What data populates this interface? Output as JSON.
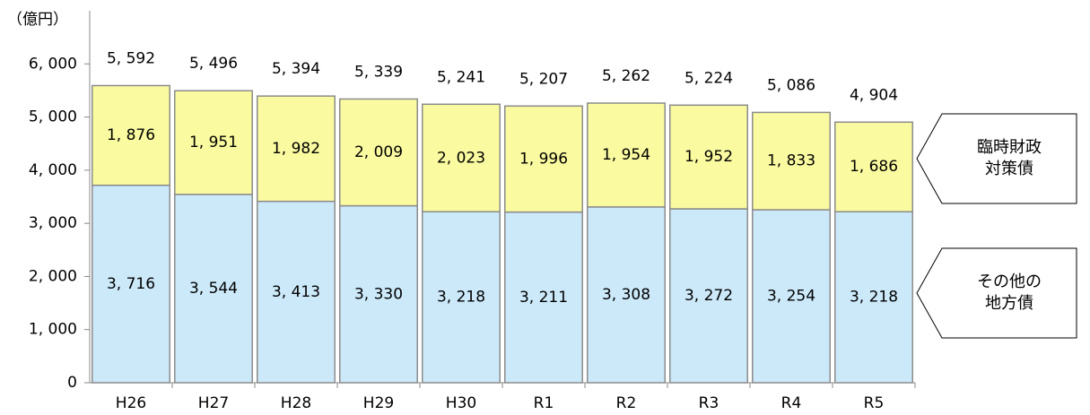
{
  "chart_data": {
    "type": "stacked_bar",
    "y_axis_label": "（億円）",
    "categories": [
      "H26",
      "H27",
      "H28",
      "H29",
      "H30",
      "R1",
      "R2",
      "R3",
      "R4",
      "R5"
    ],
    "series": [
      {
        "name": "その他の地方債",
        "color": "#cce9fa",
        "values": [
          3716,
          3544,
          3413,
          3330,
          3218,
          3211,
          3308,
          3272,
          3254,
          3218
        ],
        "value_labels": [
          "3, 716",
          "3, 544",
          "3, 413",
          "3, 330",
          "3, 218",
          "3, 211",
          "3, 308",
          "3, 272",
          "3, 254",
          "3, 218"
        ]
      },
      {
        "name": "臨時財政対策債",
        "color": "#fafaa0",
        "values": [
          1876,
          1951,
          1982,
          2009,
          2023,
          1996,
          1954,
          1952,
          1833,
          1686
        ],
        "value_labels": [
          "1, 876",
          "1, 951",
          "1, 982",
          "2, 009",
          "2, 023",
          "1, 996",
          "1, 954",
          "1, 952",
          "1, 833",
          "1, 686"
        ]
      }
    ],
    "totals": [
      5592,
      5496,
      5394,
      5339,
      5241,
      5207,
      5262,
      5224,
      5086,
      4904
    ],
    "total_labels": [
      "5, 592",
      "5, 496",
      "5, 394",
      "5, 339",
      "5, 241",
      "5, 207",
      "5, 262",
      "5, 224",
      "5, 086",
      "4, 904"
    ],
    "ylim": [
      0,
      7000
    ],
    "yticks": [
      0,
      {
        "value": 1000,
        "label": "1, 000"
      },
      {
        "value": 2000,
        "label": "2, 000"
      },
      {
        "value": 3000,
        "label": "3, 000"
      },
      {
        "value": 4000,
        "label": "4, 000"
      },
      {
        "value": 5000,
        "label": "5, 000"
      },
      {
        "value": 6000,
        "label": "6, 000"
      }
    ],
    "grid": false
  }
}
